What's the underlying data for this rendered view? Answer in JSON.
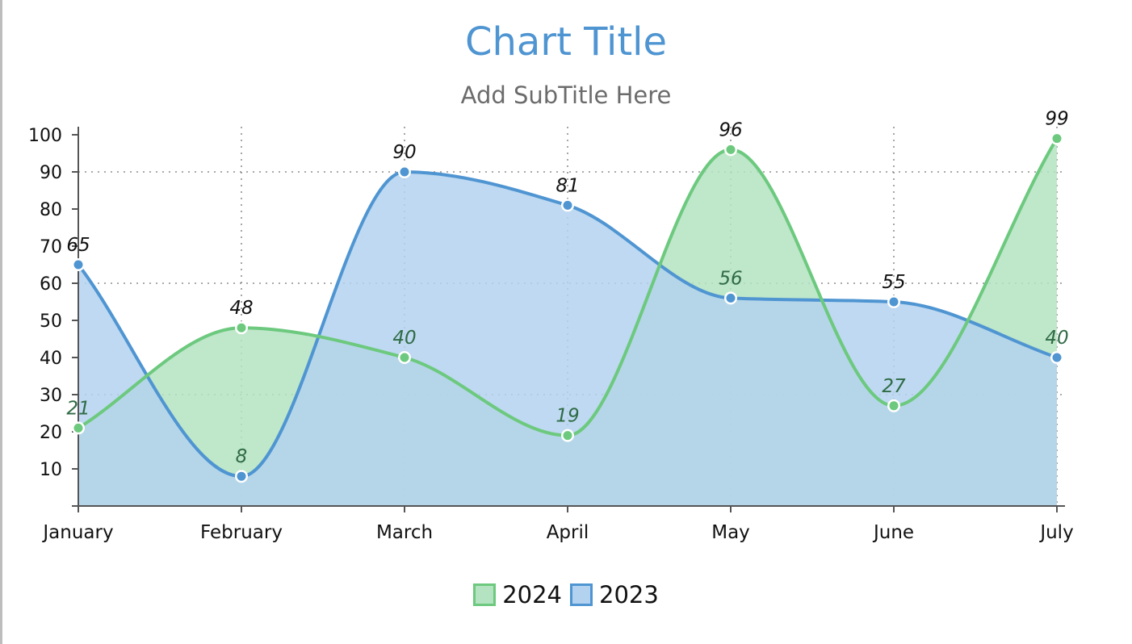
{
  "chart_data": {
    "type": "area",
    "title": "Chart Title",
    "subtitle": "Add SubTitle Here",
    "xlabel": "",
    "ylabel": "",
    "categories": [
      "January",
      "February",
      "March",
      "April",
      "May",
      "June",
      "July"
    ],
    "ylim": [
      0,
      100
    ],
    "yticks": [
      10,
      20,
      30,
      40,
      50,
      60,
      70,
      80,
      90,
      100
    ],
    "series": [
      {
        "name": "2024",
        "values": [
          21,
          48,
          40,
          19,
          96,
          27,
          99
        ],
        "color": "#6cc97e",
        "fill": "#b4e3c1"
      },
      {
        "name": "2023",
        "values": [
          65,
          8,
          90,
          81,
          56,
          55,
          40
        ],
        "color": "#4f95d2",
        "fill": "#b3d2ef"
      }
    ],
    "grid": {
      "x": true,
      "y": [
        30,
        60,
        90
      ],
      "style": "dotted"
    },
    "smooth": true,
    "data_labels": true,
    "legend": "bottom-center"
  },
  "colors": {
    "title": "#4f95d2",
    "subtitle": "#6b6b6b",
    "axis": "#555555"
  }
}
